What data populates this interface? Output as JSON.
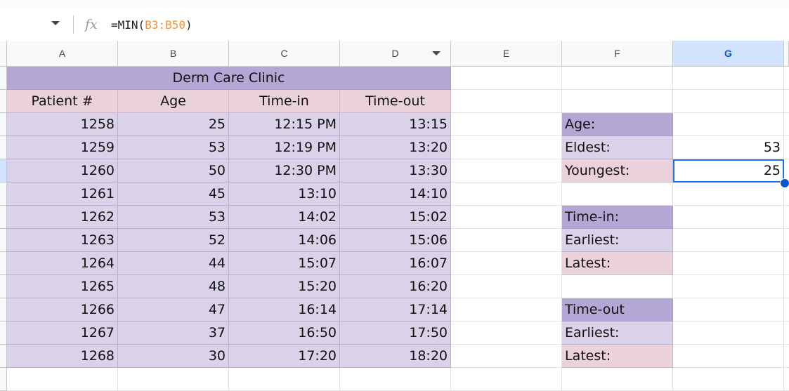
{
  "formula_bar": {
    "prefix": "=MIN(",
    "ref": "B3:B50",
    "suffix": ")"
  },
  "columns": [
    "A",
    "B",
    "C",
    "D",
    "E",
    "F",
    "G"
  ],
  "selected_cell": "G5",
  "title": "Derm Care Clinic",
  "headers": [
    "Patient #",
    "Age",
    "Time-in",
    "Time-out"
  ],
  "rows": [
    [
      "1258",
      "25",
      "12:15 PM",
      "13:15"
    ],
    [
      "1259",
      "53",
      "12:19 PM",
      "13:20"
    ],
    [
      "1260",
      "50",
      "12:30 PM",
      "13:30"
    ],
    [
      "1261",
      "45",
      "13:10",
      "14:10"
    ],
    [
      "1262",
      "53",
      "14:02",
      "15:02"
    ],
    [
      "1263",
      "52",
      "14:06",
      "15:06"
    ],
    [
      "1264",
      "44",
      "15:07",
      "16:07"
    ],
    [
      "1265",
      "48",
      "15:20",
      "16:20"
    ],
    [
      "1266",
      "47",
      "16:14",
      "17:14"
    ],
    [
      "1267",
      "37",
      "16:50",
      "17:50"
    ],
    [
      "1268",
      "30",
      "17:20",
      "18:20"
    ]
  ],
  "summary": [
    {
      "label": "Age:",
      "style": "t",
      "value": ""
    },
    {
      "label": "Eldest:",
      "style": "d",
      "value": "53"
    },
    {
      "label": "Youngest:",
      "style": "h",
      "value": "25"
    },
    {
      "label": "",
      "style": "",
      "value": ""
    },
    {
      "label": "Time-in:",
      "style": "t",
      "value": ""
    },
    {
      "label": "Earliest:",
      "style": "d",
      "value": ""
    },
    {
      "label": "Latest:",
      "style": "h",
      "value": ""
    },
    {
      "label": "",
      "style": "",
      "value": ""
    },
    {
      "label": "Time-out",
      "style": "t",
      "value": ""
    },
    {
      "label": "Earliest:",
      "style": "d",
      "value": ""
    },
    {
      "label": "Latest:",
      "style": "h",
      "value": ""
    }
  ],
  "colors": {
    "title": "#b4a7d6",
    "header": "#ead1dc",
    "data": "#d9d2e9",
    "selection": "#1a73e8"
  }
}
